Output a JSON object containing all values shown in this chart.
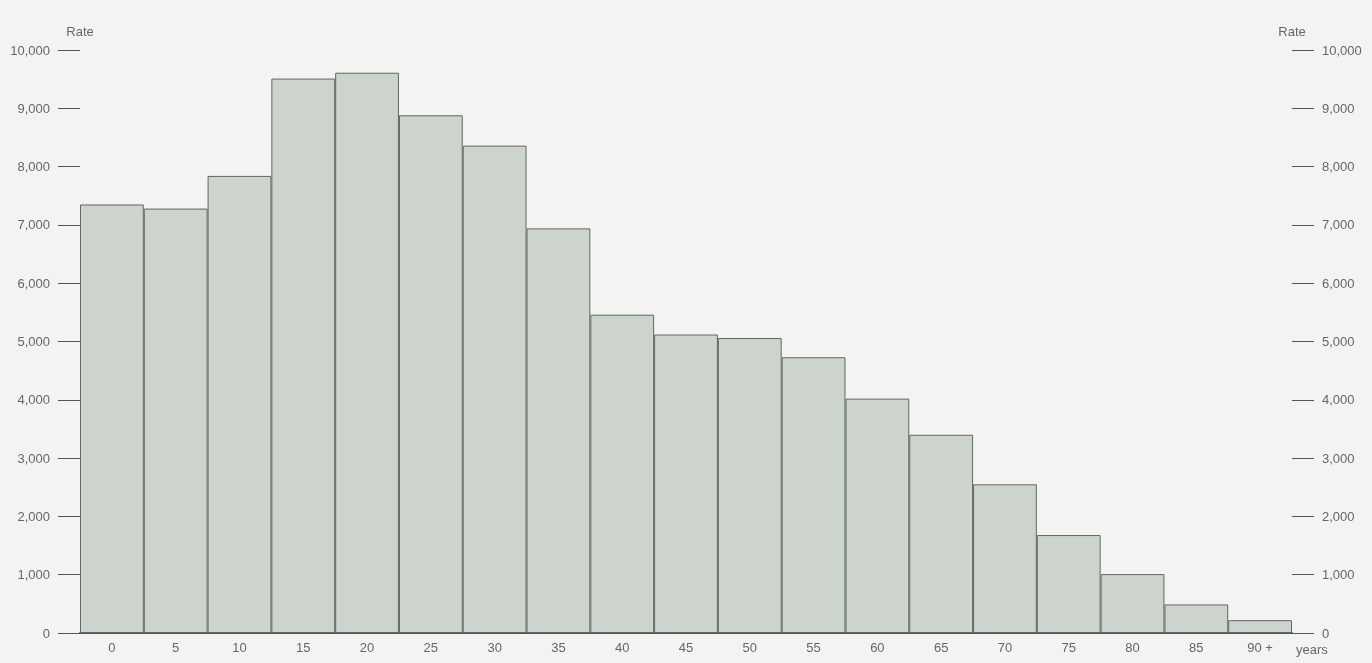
{
  "chart_data": {
    "type": "bar",
    "categories": [
      "0",
      "5",
      "10",
      "15",
      "20",
      "25",
      "30",
      "35",
      "40",
      "45",
      "50",
      "55",
      "60",
      "65",
      "70",
      "75",
      "80",
      "85",
      "90 +"
    ],
    "values": [
      7350,
      7280,
      7840,
      9510,
      9610,
      8880,
      8360,
      6940,
      5460,
      5120,
      5060,
      4730,
      4020,
      3400,
      2550,
      1680,
      1010,
      490,
      220
    ],
    "color": "#cdd3cd",
    "xlabel": "years",
    "ylabel": "Rate",
    "y2label": "Rate",
    "ylim": [
      0,
      10000
    ],
    "yticks": [
      0,
      {
        "value": 1000,
        "label": "1,000"
      },
      {
        "value": 2000,
        "label": "2,000"
      },
      {
        "value": 3000,
        "label": "3,000"
      },
      {
        "value": 4000,
        "label": "4,000"
      },
      {
        "value": 5000,
        "label": "5,000"
      },
      {
        "value": 6000,
        "label": "6,000"
      },
      {
        "value": 7000,
        "label": "7,000"
      },
      {
        "value": 8000,
        "label": "8,000"
      },
      {
        "value": 9000,
        "label": "9,000"
      },
      {
        "value": 10000,
        "label": "10,000"
      }
    ],
    "y2lim": [
      0,
      10000
    ],
    "y2ticks": [
      0,
      {
        "value": 1000,
        "label": "1,000"
      },
      {
        "value": 2000,
        "label": "2,000"
      },
      {
        "value": 3000,
        "label": "3,000"
      },
      {
        "value": 4000,
        "label": "4,000"
      },
      {
        "value": 5000,
        "label": "5,000"
      },
      {
        "value": 6000,
        "label": "6,000"
      },
      {
        "value": 7000,
        "label": "7,000"
      },
      {
        "value": 8000,
        "label": "8,000"
      },
      {
        "value": 9000,
        "label": "9,000"
      },
      {
        "value": 10000,
        "label": "10,000"
      }
    ],
    "grid": false
  }
}
